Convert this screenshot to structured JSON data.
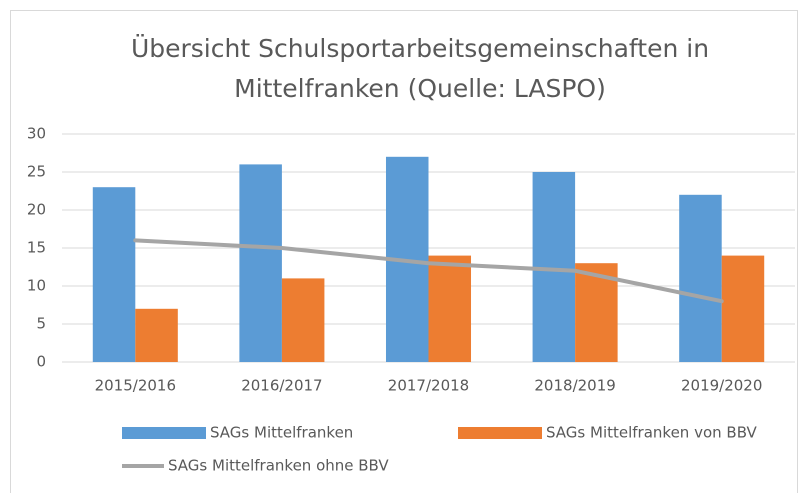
{
  "chart_data": {
    "type": "bar",
    "title": [
      "Übersicht Schulsportarbeitsgemeinschaften  in",
      "Mittelfranken (Quelle: LASPO)"
    ],
    "categories": [
      "2015/2016",
      "2016/2017",
      "2017/2018",
      "2018/2019",
      "2019/2020"
    ],
    "series": [
      {
        "name": "SAGs Mittelfranken",
        "color": "#5b9bd5",
        "type": "bar",
        "values": [
          23,
          26,
          27,
          25,
          22
        ]
      },
      {
        "name": "SAGs Mittelfranken von BBV",
        "color": "#ed7d31",
        "type": "bar",
        "values": [
          7,
          11,
          14,
          13,
          14
        ]
      },
      {
        "name": "SAGs Mittelfranken ohne BBV",
        "color": "#a5a5a5",
        "type": "line",
        "values": [
          16,
          15,
          13,
          12,
          8
        ]
      }
    ],
    "ylim": [
      0,
      30
    ],
    "yticks": [
      0,
      5,
      10,
      15,
      20,
      25,
      30
    ],
    "grid": true,
    "legend": "bottom"
  }
}
